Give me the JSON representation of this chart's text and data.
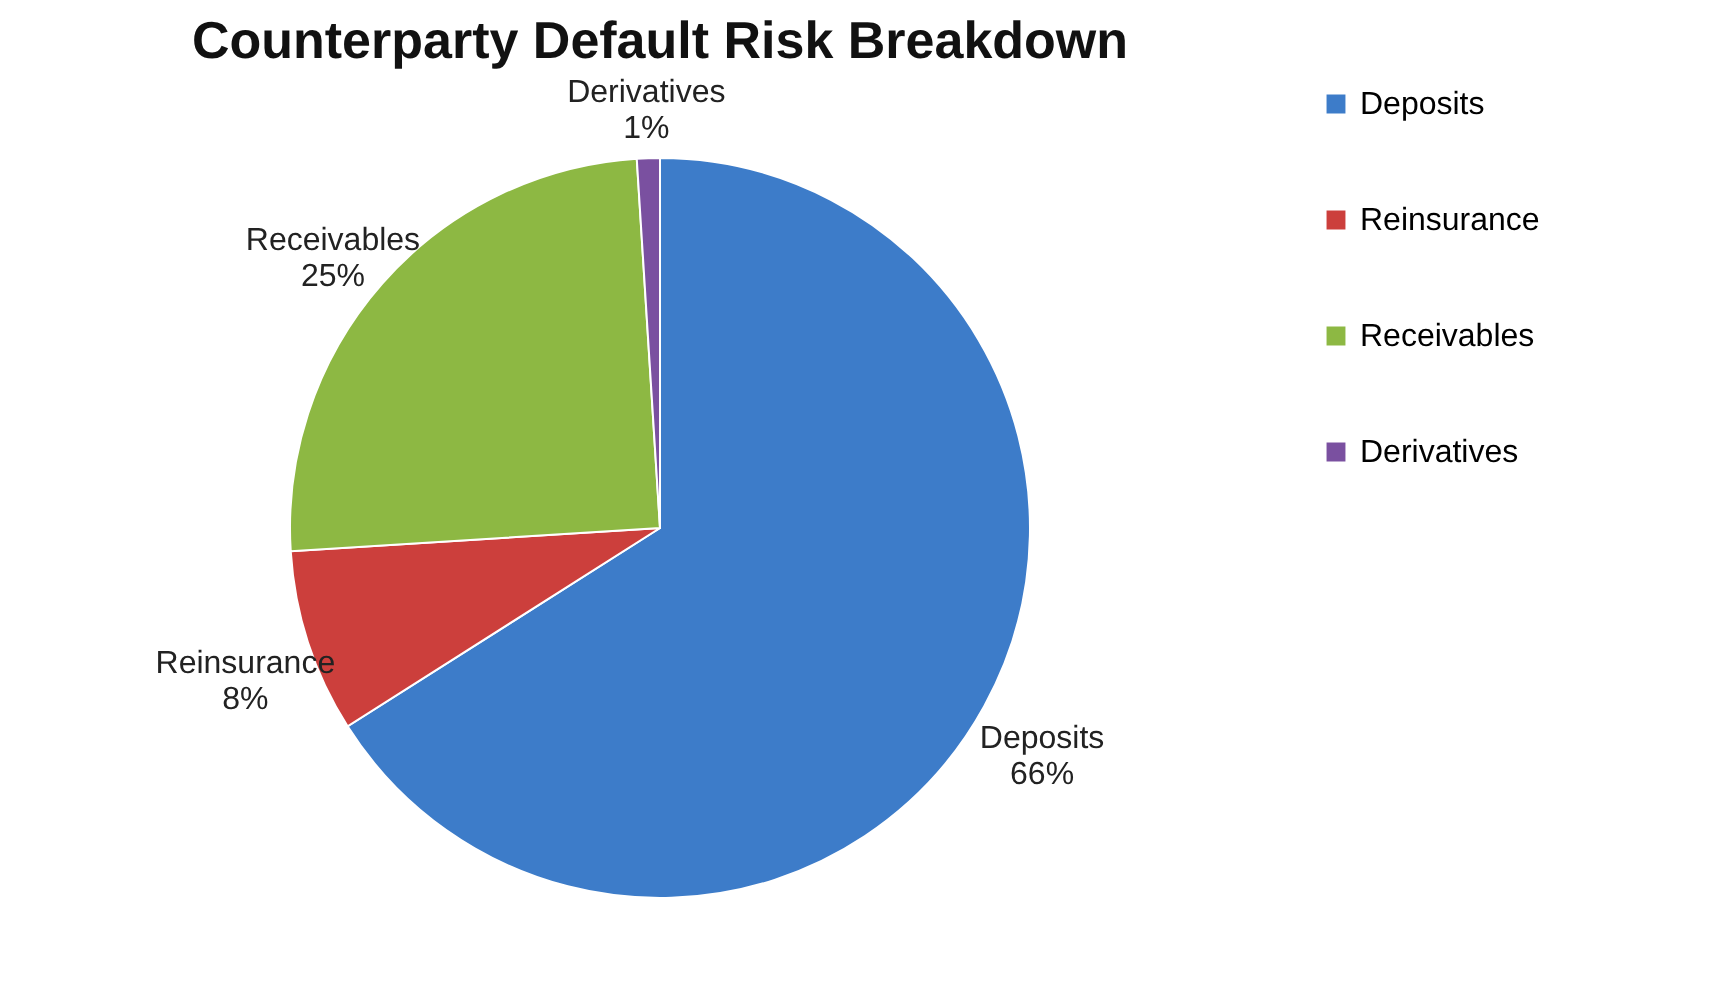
{
  "chart_data": {
    "type": "pie",
    "title": "Counterparty Default Risk Breakdown",
    "categories": [
      "Deposits",
      "Reinsurance",
      "Receivables",
      "Derivatives"
    ],
    "values": [
      66,
      8,
      25,
      1
    ],
    "colors": [
      "#3d7cc9",
      "#cc3f3c",
      "#8db843",
      "#7a50a0"
    ],
    "value_labels": [
      "66%",
      "8%",
      "25%",
      "1%"
    ],
    "legend": "right"
  }
}
